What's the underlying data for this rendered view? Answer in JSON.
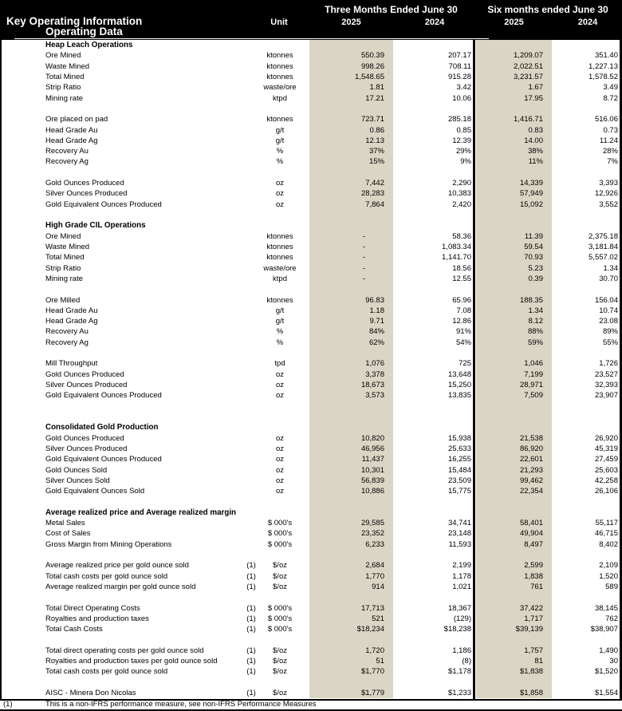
{
  "colors": {
    "highlight_column": "#dad5c4",
    "header_bg": "#000000",
    "header_text": "#ffffff",
    "border": "#000000"
  },
  "header": {
    "title": "Key Operating Information",
    "subtitle": "Operating Data",
    "unit_label": "Unit",
    "period_groups": [
      {
        "label": "Three Months Ended June 30",
        "years": [
          "2025",
          "2024"
        ]
      },
      {
        "label": "Six months ended June 30",
        "years": [
          "2025",
          "2024"
        ]
      }
    ]
  },
  "table": {
    "rows": [
      {
        "type": "section",
        "label": "Heap Leach Operations"
      },
      {
        "type": "data",
        "label": "Ore Mined",
        "unit": "ktonnes",
        "values": [
          "550.39",
          "207.17",
          "1,209.07",
          "351.40"
        ]
      },
      {
        "type": "data",
        "label": "Waste Mined",
        "unit": "ktonnes",
        "values": [
          "998.26",
          "708.11",
          "2,022.51",
          "1,227.13"
        ]
      },
      {
        "type": "data",
        "label": "Total Mined",
        "unit": "ktonnes",
        "values": [
          "1,548.65",
          "915.28",
          "3,231.57",
          "1,578.52"
        ]
      },
      {
        "type": "data",
        "label": "Strip Ratio",
        "unit": "waste/ore",
        "values": [
          "1.81",
          "3.42",
          "1.67",
          "3.49"
        ]
      },
      {
        "type": "data",
        "label": "Mining rate",
        "unit": "ktpd",
        "values": [
          "17.21",
          "10.06",
          "17.95",
          "8.72"
        ]
      },
      {
        "type": "blank"
      },
      {
        "type": "data",
        "label": "Ore placed on pad",
        "unit": "ktonnes",
        "values": [
          "723.71",
          "285.18",
          "1,416.71",
          "516.06"
        ]
      },
      {
        "type": "data",
        "label": "Head Grade Au",
        "unit": "g/t",
        "values": [
          "0.86",
          "0.85",
          "0.83",
          "0.73"
        ]
      },
      {
        "type": "data",
        "label": "Head Grade Ag",
        "unit": "g/t",
        "values": [
          "12.13",
          "12.39",
          "14.00",
          "11.24"
        ]
      },
      {
        "type": "data",
        "label": "Recovery Au",
        "unit": "%",
        "values": [
          "37%",
          "29%",
          "38%",
          "28%"
        ]
      },
      {
        "type": "data",
        "label": "Recovery Ag",
        "unit": "%",
        "values": [
          "15%",
          "9%",
          "11%",
          "7%"
        ]
      },
      {
        "type": "blank"
      },
      {
        "type": "data",
        "label": "Gold Ounces Produced",
        "unit": "oz",
        "values": [
          "7,442",
          "2,290",
          "14,339",
          "3,393"
        ]
      },
      {
        "type": "data",
        "label": "Silver Ounces Produced",
        "unit": "oz",
        "values": [
          "28,283",
          "10,383",
          "57,949",
          "12,926"
        ]
      },
      {
        "type": "data",
        "label": "Gold Equivalent Ounces Produced",
        "unit": "oz",
        "values": [
          "7,864",
          "2,420",
          "15,092",
          "3,552"
        ]
      },
      {
        "type": "blank"
      },
      {
        "type": "section",
        "label": "High Grade CIL Operations"
      },
      {
        "type": "data",
        "label": "Ore Mined",
        "unit": "ktonnes",
        "values": [
          "-",
          "58.36",
          "11.39",
          "2,375.18"
        ]
      },
      {
        "type": "data",
        "label": "Waste Mined",
        "unit": "ktonnes",
        "values": [
          "-",
          "1,083.34",
          "59.54",
          "3,181.84"
        ]
      },
      {
        "type": "data",
        "label": "Total Mined",
        "unit": "ktonnes",
        "values": [
          "-",
          "1,141.70",
          "70.93",
          "5,557.02"
        ]
      },
      {
        "type": "data",
        "label": "Strip Ratio",
        "unit": "waste/ore",
        "values": [
          "-",
          "18.56",
          "5.23",
          "1.34"
        ]
      },
      {
        "type": "data",
        "label": "Mining rate",
        "unit": "ktpd",
        "values": [
          "-",
          "12.55",
          "0.39",
          "30.70"
        ]
      },
      {
        "type": "blank"
      },
      {
        "type": "data",
        "label": "Ore Milled",
        "unit": "ktonnes",
        "values": [
          "96.83",
          "65.96",
          "188.35",
          "156.04"
        ]
      },
      {
        "type": "data",
        "label": "Head Grade Au",
        "unit": "g/t",
        "values": [
          "1.18",
          "7.08",
          "1.34",
          "10.74"
        ]
      },
      {
        "type": "data",
        "label": "Head Grade Ag",
        "unit": "g/t",
        "values": [
          "9.71",
          "12.86",
          "8.12",
          "23.08"
        ]
      },
      {
        "type": "data",
        "label": "Recovery Au",
        "unit": "%",
        "values": [
          "84%",
          "91%",
          "88%",
          "89%"
        ]
      },
      {
        "type": "data",
        "label": "Recovery Ag",
        "unit": "%",
        "values": [
          "62%",
          "54%",
          "59%",
          "55%"
        ]
      },
      {
        "type": "blank"
      },
      {
        "type": "data",
        "label": "Mill Throughput",
        "unit": "tpd",
        "values": [
          "1,076",
          "725",
          "1,046",
          "1,726"
        ]
      },
      {
        "type": "data",
        "label": "Gold Ounces Produced",
        "unit": "oz",
        "values": [
          "3,378",
          "13,648",
          "7,199",
          "23,527"
        ]
      },
      {
        "type": "data",
        "label": "Silver Ounces Produced",
        "unit": "oz",
        "values": [
          "18,673",
          "15,250",
          "28,971",
          "32,393"
        ]
      },
      {
        "type": "data",
        "label": "Gold Equivalent Ounces Produced",
        "unit": "oz",
        "values": [
          "3,573",
          "13,835",
          "7,509",
          "23,907"
        ]
      },
      {
        "type": "blank"
      },
      {
        "type": "blank"
      },
      {
        "type": "section",
        "label": "Consolidated Gold Production"
      },
      {
        "type": "data",
        "label": "Gold Ounces Produced",
        "unit": "oz",
        "values": [
          "10,820",
          "15,938",
          "21,538",
          "26,920"
        ]
      },
      {
        "type": "data",
        "label": "Silver Ounces Produced",
        "unit": "oz",
        "values": [
          "46,956",
          "25,633",
          "86,920",
          "45,319"
        ]
      },
      {
        "type": "data",
        "label": "Gold Equivalent Ounces Produced",
        "unit": "oz",
        "values": [
          "11,437",
          "16,255",
          "22,601",
          "27,459"
        ]
      },
      {
        "type": "data",
        "label": "Gold Ounces Sold",
        "unit": "oz",
        "values": [
          "10,301",
          "15,484",
          "21,293",
          "25,603"
        ]
      },
      {
        "type": "data",
        "label": "Silver Ounces Sold",
        "unit": "oz",
        "values": [
          "56,839",
          "23,509",
          "99,462",
          "42,258"
        ]
      },
      {
        "type": "data",
        "label": "Gold Equivalent Ounces Sold",
        "unit": "oz",
        "values": [
          "10,886",
          "15,775",
          "22,354",
          "26,106"
        ]
      },
      {
        "type": "blank"
      },
      {
        "type": "section",
        "label": "Average realized price and Average realized margin"
      },
      {
        "type": "data",
        "label": "Metal Sales",
        "unit": "$ 000's",
        "values": [
          "29,585",
          "34,741",
          "58,401",
          "55,117"
        ]
      },
      {
        "type": "data",
        "label": "Cost of Sales",
        "unit": "$ 000's",
        "values": [
          "23,352",
          "23,148",
          "49,904",
          "46,715"
        ]
      },
      {
        "type": "data",
        "label": "Gross Margin from Mining Operations",
        "unit": "$ 000's",
        "values": [
          "6,233",
          "11,593",
          "8,497",
          "8,402"
        ]
      },
      {
        "type": "blank"
      },
      {
        "type": "data",
        "label": "Average realized price per gold ounce sold",
        "note": "(1)",
        "unit": "$/oz",
        "values": [
          "2,684",
          "2,199",
          "2,599",
          "2,109"
        ]
      },
      {
        "type": "data",
        "label": "Total cash costs per gold ounce sold",
        "note": "(1)",
        "unit": "$/oz",
        "values": [
          "1,770",
          "1,178",
          "1,838",
          "1,520"
        ]
      },
      {
        "type": "data",
        "label": "Average realized margin per gold ounce sold",
        "note": "(1)",
        "unit": "$/oz",
        "values": [
          "914",
          "1,021",
          "761",
          "589"
        ]
      },
      {
        "type": "blank"
      },
      {
        "type": "data",
        "label": "Total Direct Operating Costs",
        "note": "(1)",
        "unit": "$ 000's",
        "values": [
          "17,713",
          "18,367",
          "37,422",
          "38,145"
        ]
      },
      {
        "type": "data",
        "label": "Royalties and production taxes",
        "note": "(1)",
        "unit": "$ 000's",
        "values": [
          "521",
          "(129)",
          "1,717",
          "762"
        ]
      },
      {
        "type": "data",
        "label": "Total Cash Costs",
        "note": "(1)",
        "unit": "$ 000's",
        "values": [
          "$18,234",
          "$18,238",
          "$39,139",
          "$38,907"
        ]
      },
      {
        "type": "blank"
      },
      {
        "type": "data",
        "label": "Total direct operating costs per gold ounce sold",
        "note": "(1)",
        "unit": "$/oz",
        "values": [
          "1,720",
          "1,186",
          "1,757",
          "1,490"
        ]
      },
      {
        "type": "data",
        "label": "Royalties and production taxes per gold ounce sold",
        "note": "(1)",
        "unit": "$/oz",
        "values": [
          "51",
          "(8)",
          "81",
          "30"
        ]
      },
      {
        "type": "data",
        "label": "Total cash costs per gold ounce sold",
        "note": "(1)",
        "unit": "$/oz",
        "values": [
          "$1,770",
          "$1,178",
          "$1,838",
          "$1,520"
        ]
      },
      {
        "type": "blank"
      },
      {
        "type": "data",
        "label": "AISC - Minera Don Nicolas",
        "note": "(1)",
        "unit": "$/oz",
        "values": [
          "$1,779",
          "$1,233",
          "$1,858",
          "$1,554"
        ]
      }
    ]
  },
  "footnote": {
    "ref": "(1)",
    "text": "This is a non-IFRS performance measure, see non-IFRS Performance Measures"
  }
}
